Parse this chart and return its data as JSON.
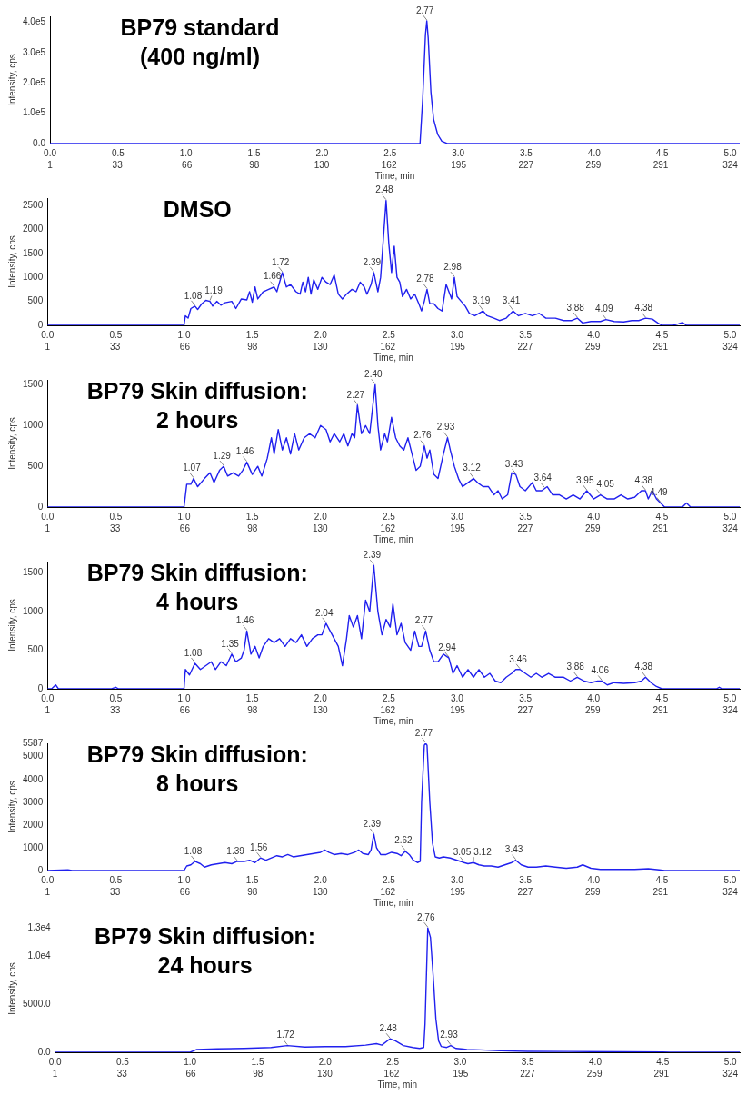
{
  "chart_data": [
    {
      "type": "line",
      "title": "BP79 standard (400 ng/ml)",
      "xlabel": "Time, min",
      "ylabel": "Intensity, cps",
      "marker": "none",
      "grid": false,
      "x": [
        0,
        1,
        2,
        2.72,
        2.74,
        2.76,
        2.77,
        2.78,
        2.8,
        2.82,
        2.85,
        2.88,
        2.92,
        3.5,
        4.5,
        5.07
      ],
      "series": [
        {
          "color": "#2020ee",
          "values": [
            0,
            0,
            0,
            0,
            150000,
            360000,
            405000,
            350000,
            170000,
            80000,
            30000,
            8000,
            0,
            0,
            0,
            0
          ]
        }
      ],
      "xlim": [
        0,
        5.07
      ],
      "xticks": [
        {
          "value": 0,
          "label": "0.0"
        },
        0.5,
        {
          "value": 1,
          "label": "1.0"
        },
        1.5,
        {
          "value": 2,
          "label": "2.0"
        },
        2.5,
        {
          "value": 3,
          "label": "3.0"
        },
        3.5,
        {
          "value": 4,
          "label": "4.0"
        },
        4.5,
        {
          "value": 5,
          "label": "5.0"
        }
      ],
      "x2lim": [
        1,
        328.5
      ],
      "x2ticks": [
        1,
        33,
        66,
        98,
        130,
        162,
        195,
        227,
        259,
        291,
        324
      ],
      "ylim": [
        0,
        420000
      ],
      "yticks": [
        {
          "value": 0,
          "label": "0.0"
        },
        {
          "value": 100000,
          "label": "1.0e5"
        },
        {
          "value": 200000,
          "label": "2.0e5"
        },
        {
          "value": 300000,
          "label": "3.0e5"
        },
        {
          "value": 400000,
          "label": "4.0e5"
        }
      ],
      "annotations": [
        {
          "text": "2.77",
          "x": 2.77,
          "y": 405000
        }
      ]
    },
    {
      "type": "line",
      "title": "DMSO",
      "xlabel": "Time, min",
      "ylabel": "Intensity, cps",
      "marker": "none",
      "grid": false,
      "x": [
        0,
        0.99,
        1.0,
        1.01,
        1.03,
        1.05,
        1.08,
        1.1,
        1.13,
        1.16,
        1.19,
        1.21,
        1.24,
        1.27,
        1.3,
        1.35,
        1.38,
        1.42,
        1.46,
        1.48,
        1.5,
        1.52,
        1.54,
        1.58,
        1.62,
        1.66,
        1.68,
        1.72,
        1.75,
        1.78,
        1.82,
        1.85,
        1.87,
        1.89,
        1.91,
        1.93,
        1.95,
        1.98,
        2.01,
        2.04,
        2.07,
        2.1,
        2.13,
        2.16,
        2.19,
        2.23,
        2.26,
        2.29,
        2.32,
        2.34,
        2.37,
        2.39,
        2.42,
        2.44,
        2.46,
        2.48,
        2.5,
        2.52,
        2.54,
        2.56,
        2.58,
        2.6,
        2.63,
        2.66,
        2.69,
        2.72,
        2.74,
        2.76,
        2.78,
        2.8,
        2.83,
        2.86,
        2.89,
        2.92,
        2.94,
        2.96,
        2.98,
        3.0,
        3.03,
        3.06,
        3.09,
        3.13,
        3.16,
        3.19,
        3.22,
        3.27,
        3.31,
        3.36,
        3.41,
        3.45,
        3.5,
        3.55,
        3.6,
        3.65,
        3.72,
        3.78,
        3.84,
        3.88,
        3.92,
        3.98,
        4.05,
        4.09,
        4.15,
        4.22,
        4.28,
        4.33,
        4.38,
        4.43,
        4.47,
        4.5,
        4.58,
        4.62,
        4.65,
        4.68,
        5.07
      ],
      "series": [
        {
          "color": "#2020ee",
          "values": [
            0,
            0,
            0,
            200,
            150,
            350,
            400,
            330,
            450,
            520,
            500,
            400,
            500,
            420,
            470,
            500,
            350,
            550,
            530,
            700,
            480,
            800,
            550,
            700,
            750,
            800,
            700,
            1100,
            800,
            850,
            700,
            650,
            900,
            700,
            1000,
            650,
            950,
            750,
            1000,
            900,
            850,
            1050,
            650,
            550,
            650,
            750,
            700,
            900,
            800,
            650,
            850,
            1100,
            700,
            1000,
            1800,
            2600,
            1700,
            1100,
            1650,
            1000,
            900,
            600,
            750,
            550,
            650,
            450,
            300,
            500,
            750,
            450,
            450,
            350,
            300,
            850,
            700,
            550,
            1000,
            600,
            500,
            400,
            250,
            200,
            250,
            300,
            200,
            150,
            100,
            150,
            300,
            200,
            250,
            200,
            250,
            150,
            150,
            100,
            100,
            150,
            50,
            80,
            80,
            120,
            80,
            70,
            100,
            100,
            150,
            130,
            50,
            0,
            0,
            30,
            60,
            0,
            0
          ]
        }
      ],
      "xlim": [
        0,
        5.07
      ],
      "xticks": [
        {
          "value": 0,
          "label": "0.0"
        },
        0.5,
        {
          "value": 1,
          "label": "1.0"
        },
        1.5,
        {
          "value": 2,
          "label": "2.0"
        },
        2.5,
        {
          "value": 3,
          "label": "3.0"
        },
        3.5,
        {
          "value": 4,
          "label": "4.0"
        },
        4.5,
        {
          "value": 5,
          "label": "5.0"
        }
      ],
      "x2lim": [
        1,
        328.5
      ],
      "x2ticks": [
        1,
        33,
        66,
        98,
        130,
        162,
        195,
        227,
        259,
        291,
        324
      ],
      "ylim": [
        0,
        2650
      ],
      "yticks": [
        0,
        500,
        1000,
        1500,
        2000,
        2500
      ],
      "annotations": [
        {
          "text": "1.08",
          "x": 1.08,
          "y": 400
        },
        {
          "text": "1.19",
          "x": 1.19,
          "y": 500
        },
        {
          "text": "1.66",
          "x": 1.66,
          "y": 800
        },
        {
          "text": "1.72",
          "x": 1.72,
          "y": 1100
        },
        {
          "text": "2.39",
          "x": 2.39,
          "y": 1100
        },
        {
          "text": "2.48",
          "x": 2.48,
          "y": 2600
        },
        {
          "text": "2.78",
          "x": 2.78,
          "y": 750
        },
        {
          "text": "2.98",
          "x": 2.98,
          "y": 1000
        },
        {
          "text": "3.19",
          "x": 3.19,
          "y": 300
        },
        {
          "text": "3.41",
          "x": 3.41,
          "y": 300
        },
        {
          "text": "3.88",
          "x": 3.88,
          "y": 150
        },
        {
          "text": "4.09",
          "x": 4.09,
          "y": 120
        },
        {
          "text": "4.38",
          "x": 4.38,
          "y": 150
        }
      ]
    },
    {
      "type": "line",
      "title": "BP79 Skin diffusion: 2 hours",
      "xlabel": "Time, min",
      "ylabel": "Intensity, cps",
      "marker": "none",
      "grid": false,
      "x": [
        0,
        0.99,
        1.0,
        1.02,
        1.05,
        1.07,
        1.1,
        1.15,
        1.19,
        1.22,
        1.26,
        1.29,
        1.32,
        1.36,
        1.4,
        1.43,
        1.46,
        1.5,
        1.54,
        1.57,
        1.61,
        1.64,
        1.66,
        1.69,
        1.72,
        1.75,
        1.78,
        1.81,
        1.84,
        1.88,
        1.92,
        1.96,
        2.0,
        2.04,
        2.07,
        2.1,
        2.14,
        2.17,
        2.2,
        2.23,
        2.25,
        2.27,
        2.3,
        2.33,
        2.36,
        2.38,
        2.4,
        2.42,
        2.44,
        2.47,
        2.49,
        2.52,
        2.55,
        2.58,
        2.61,
        2.64,
        2.67,
        2.7,
        2.73,
        2.76,
        2.78,
        2.8,
        2.83,
        2.86,
        2.9,
        2.93,
        2.95,
        2.98,
        3.01,
        3.04,
        3.08,
        3.12,
        3.15,
        3.19,
        3.23,
        3.27,
        3.3,
        3.33,
        3.37,
        3.4,
        3.43,
        3.46,
        3.5,
        3.55,
        3.58,
        3.62,
        3.66,
        3.7,
        3.75,
        3.8,
        3.85,
        3.9,
        3.95,
        4.0,
        4.05,
        4.1,
        4.15,
        4.2,
        4.25,
        4.3,
        4.35,
        4.38,
        4.4,
        4.43,
        4.46,
        4.49,
        4.52,
        4.65,
        4.68,
        4.71,
        5.07
      ],
      "series": [
        {
          "color": "#2020ee",
          "values": [
            0,
            0,
            0,
            280,
            280,
            350,
            250,
            350,
            420,
            300,
            450,
            500,
            380,
            420,
            380,
            450,
            550,
            400,
            500,
            380,
            600,
            850,
            650,
            950,
            700,
            850,
            650,
            900,
            700,
            850,
            900,
            850,
            1000,
            950,
            800,
            900,
            800,
            900,
            750,
            900,
            850,
            1250,
            900,
            1000,
            900,
            1200,
            1500,
            1000,
            700,
            900,
            800,
            1100,
            850,
            750,
            700,
            850,
            650,
            450,
            500,
            750,
            600,
            700,
            400,
            350,
            650,
            850,
            700,
            500,
            350,
            250,
            300,
            350,
            300,
            250,
            250,
            150,
            200,
            100,
            150,
            420,
            400,
            250,
            200,
            300,
            200,
            200,
            250,
            150,
            150,
            100,
            150,
            100,
            200,
            100,
            150,
            100,
            100,
            150,
            100,
            120,
            200,
            200,
            100,
            200,
            100,
            50,
            0,
            0,
            50,
            0,
            0
          ]
        }
      ],
      "xlim": [
        0,
        5.07
      ],
      "xticks": [
        {
          "value": 0,
          "label": "0.0"
        },
        0.5,
        {
          "value": 1,
          "label": "1.0"
        },
        1.5,
        {
          "value": 2,
          "label": "2.0"
        },
        2.5,
        {
          "value": 3,
          "label": "3.0"
        },
        3.5,
        {
          "value": 4,
          "label": "4.0"
        },
        4.5,
        {
          "value": 5,
          "label": "5.0"
        }
      ],
      "x2lim": [
        1,
        328.5
      ],
      "x2ticks": [
        1,
        33,
        66,
        98,
        130,
        162,
        195,
        227,
        259,
        291,
        324
      ],
      "ylim": [
        0,
        1560
      ],
      "yticks": [
        0,
        500,
        1000,
        1500
      ],
      "annotations": [
        {
          "text": "1.07",
          "x": 1.07,
          "y": 350
        },
        {
          "text": "1.29",
          "x": 1.29,
          "y": 500
        },
        {
          "text": "1.46",
          "x": 1.46,
          "y": 550
        },
        {
          "text": "2.27",
          "x": 2.27,
          "y": 1250
        },
        {
          "text": "2.40",
          "x": 2.4,
          "y": 1500
        },
        {
          "text": "2.76",
          "x": 2.76,
          "y": 750
        },
        {
          "text": "2.93",
          "x": 2.93,
          "y": 850
        },
        {
          "text": "3.12",
          "x": 3.12,
          "y": 350
        },
        {
          "text": "3.43",
          "x": 3.43,
          "y": 400
        },
        {
          "text": "3.64",
          "x": 3.64,
          "y": 230
        },
        {
          "text": "3.95",
          "x": 3.95,
          "y": 200
        },
        {
          "text": "4.05",
          "x": 4.05,
          "y": 150
        },
        {
          "text": "4.38",
          "x": 4.38,
          "y": 200
        },
        {
          "text": "4.49",
          "x": 4.49,
          "y": 50
        }
      ]
    },
    {
      "type": "line",
      "title": "BP79 Skin diffusion: 4 hours",
      "xlabel": "Time, min",
      "ylabel": "Intensity, cps",
      "marker": "none",
      "grid": false,
      "x": [
        0,
        0.03,
        0.06,
        0.08,
        0.47,
        0.5,
        0.52,
        0.99,
        1.0,
        1.01,
        1.04,
        1.08,
        1.12,
        1.16,
        1.2,
        1.23,
        1.27,
        1.31,
        1.35,
        1.38,
        1.42,
        1.44,
        1.46,
        1.49,
        1.52,
        1.55,
        1.58,
        1.62,
        1.66,
        1.7,
        1.74,
        1.78,
        1.82,
        1.86,
        1.9,
        1.94,
        1.98,
        2.01,
        2.04,
        2.07,
        2.1,
        2.13,
        2.16,
        2.19,
        2.21,
        2.24,
        2.27,
        2.3,
        2.33,
        2.36,
        2.39,
        2.42,
        2.45,
        2.48,
        2.51,
        2.53,
        2.56,
        2.59,
        2.62,
        2.66,
        2.69,
        2.72,
        2.74,
        2.77,
        2.8,
        2.83,
        2.86,
        2.9,
        2.94,
        2.97,
        3.0,
        3.04,
        3.08,
        3.12,
        3.16,
        3.2,
        3.24,
        3.28,
        3.32,
        3.36,
        3.4,
        3.43,
        3.46,
        3.5,
        3.54,
        3.58,
        3.62,
        3.67,
        3.72,
        3.78,
        3.83,
        3.88,
        3.93,
        3.98,
        4.03,
        4.06,
        4.1,
        4.15,
        4.22,
        4.3,
        4.35,
        4.38,
        4.42,
        4.46,
        4.5,
        4.9,
        4.92,
        4.94,
        5.07
      ],
      "series": [
        {
          "color": "#2020ee",
          "values": [
            0,
            0,
            50,
            0,
            0,
            20,
            0,
            0,
            0,
            250,
            180,
            330,
            250,
            300,
            350,
            250,
            350,
            300,
            450,
            350,
            400,
            500,
            750,
            450,
            550,
            400,
            550,
            650,
            600,
            650,
            550,
            650,
            600,
            700,
            550,
            650,
            700,
            700,
            850,
            750,
            650,
            550,
            300,
            650,
            950,
            800,
            950,
            650,
            1150,
            1000,
            1600,
            1000,
            700,
            900,
            800,
            1100,
            700,
            850,
            600,
            500,
            750,
            550,
            550,
            750,
            500,
            350,
            350,
            450,
            400,
            200,
            300,
            150,
            250,
            150,
            250,
            150,
            200,
            100,
            80,
            150,
            200,
            250,
            250,
            200,
            150,
            200,
            150,
            200,
            150,
            150,
            100,
            150,
            100,
            80,
            100,
            100,
            50,
            80,
            70,
            80,
            100,
            150,
            80,
            30,
            0,
            0,
            20,
            0,
            0
          ]
        }
      ],
      "xlim": [
        0,
        5.07
      ],
      "xticks": [
        {
          "value": 0,
          "label": "0.0"
        },
        0.5,
        {
          "value": 1,
          "label": "1.0"
        },
        1.5,
        {
          "value": 2,
          "label": "2.0"
        },
        2.5,
        {
          "value": 3,
          "label": "3.0"
        },
        3.5,
        {
          "value": 4,
          "label": "4.0"
        },
        4.5,
        {
          "value": 5,
          "label": "5.0"
        }
      ],
      "x2lim": [
        1,
        328.5
      ],
      "x2ticks": [
        1,
        33,
        66,
        98,
        130,
        162,
        195,
        227,
        259,
        291,
        324
      ],
      "ylim": [
        0,
        1650
      ],
      "yticks": [
        0,
        500,
        1000,
        1500
      ],
      "annotations": [
        {
          "text": "1.08",
          "x": 1.08,
          "y": 330
        },
        {
          "text": "1.35",
          "x": 1.35,
          "y": 450
        },
        {
          "text": "1.46",
          "x": 1.46,
          "y": 750
        },
        {
          "text": "2.04",
          "x": 2.04,
          "y": 850
        },
        {
          "text": "2.39",
          "x": 2.39,
          "y": 1600
        },
        {
          "text": "2.77",
          "x": 2.77,
          "y": 750
        },
        {
          "text": "2.94",
          "x": 2.94,
          "y": 400
        },
        {
          "text": "3.46",
          "x": 3.46,
          "y": 250
        },
        {
          "text": "3.88",
          "x": 3.88,
          "y": 150
        },
        {
          "text": "4.06",
          "x": 4.06,
          "y": 100
        },
        {
          "text": "4.38",
          "x": 4.38,
          "y": 150
        }
      ]
    },
    {
      "type": "line",
      "title": "BP79 Skin diffusion: 8 hours",
      "xlabel": "Time, min",
      "ylabel": "Intensity, cps",
      "marker": "none",
      "grid": false,
      "x": [
        0,
        0.15,
        0.18,
        0.99,
        1.0,
        1.02,
        1.05,
        1.08,
        1.12,
        1.15,
        1.2,
        1.25,
        1.3,
        1.35,
        1.39,
        1.44,
        1.48,
        1.52,
        1.56,
        1.6,
        1.64,
        1.68,
        1.72,
        1.76,
        1.8,
        1.85,
        1.9,
        1.95,
        2.0,
        2.03,
        2.06,
        2.1,
        2.15,
        2.2,
        2.25,
        2.28,
        2.31,
        2.35,
        2.37,
        2.39,
        2.41,
        2.44,
        2.48,
        2.52,
        2.56,
        2.59,
        2.62,
        2.65,
        2.68,
        2.71,
        2.73,
        2.74,
        2.76,
        2.77,
        2.78,
        2.8,
        2.82,
        2.84,
        2.87,
        2.9,
        2.95,
        3.0,
        3.05,
        3.08,
        3.12,
        3.16,
        3.2,
        3.25,
        3.3,
        3.35,
        3.4,
        3.43,
        3.47,
        3.52,
        3.58,
        3.65,
        3.72,
        3.8,
        3.88,
        3.92,
        3.98,
        4.05,
        4.15,
        4.3,
        4.4,
        4.48,
        4.52,
        5.07
      ],
      "series": [
        {
          "color": "#2020ee",
          "values": [
            0,
            30,
            0,
            0,
            0,
            200,
            250,
            400,
            300,
            150,
            250,
            300,
            350,
            300,
            400,
            400,
            450,
            350,
            550,
            450,
            550,
            650,
            600,
            700,
            600,
            650,
            700,
            750,
            800,
            900,
            800,
            700,
            750,
            700,
            800,
            900,
            750,
            700,
            900,
            1600,
            1000,
            700,
            700,
            800,
            750,
            650,
            850,
            700,
            450,
            350,
            400,
            3000,
            5500,
            5587,
            5500,
            3000,
            1200,
            600,
            550,
            600,
            550,
            450,
            350,
            300,
            350,
            250,
            200,
            200,
            150,
            250,
            350,
            450,
            250,
            150,
            150,
            200,
            150,
            100,
            150,
            250,
            100,
            50,
            50,
            50,
            80,
            30,
            0,
            0
          ]
        }
      ],
      "xlim": [
        0,
        5.07
      ],
      "xticks": [
        {
          "value": 0,
          "label": "0.0"
        },
        0.5,
        {
          "value": 1,
          "label": "1.0"
        },
        1.5,
        {
          "value": 2,
          "label": "2.0"
        },
        2.5,
        {
          "value": 3,
          "label": "3.0"
        },
        3.5,
        {
          "value": 4,
          "label": "4.0"
        },
        4.5,
        {
          "value": 5,
          "label": "5.0"
        }
      ],
      "x2lim": [
        1,
        328.5
      ],
      "x2ticks": [
        1,
        33,
        66,
        98,
        130,
        162,
        195,
        227,
        259,
        291,
        324
      ],
      "ylim": [
        0,
        5587
      ],
      "yticks": [
        0,
        1000,
        2000,
        3000,
        4000,
        5000,
        5587
      ],
      "annotations": [
        {
          "text": "1.08",
          "x": 1.08,
          "y": 400
        },
        {
          "text": "1.39",
          "x": 1.39,
          "y": 400
        },
        {
          "text": "1.56",
          "x": 1.56,
          "y": 550
        },
        {
          "text": "2.39",
          "x": 2.39,
          "y": 1600
        },
        {
          "text": "2.62",
          "x": 2.62,
          "y": 850
        },
        {
          "text": "2.77",
          "x": 2.77,
          "y": 5587
        },
        {
          "text": "3.05",
          "x": 3.05,
          "y": 350
        },
        {
          "text": "3.12",
          "x": 3.12,
          "y": 350
        },
        {
          "text": "3.43",
          "x": 3.43,
          "y": 450
        }
      ]
    },
    {
      "type": "line",
      "title": "BP79 Skin diffusion: 24 hours",
      "xlabel": "Time, min",
      "ylabel": "Intensity, cps",
      "marker": "none",
      "grid": false,
      "x": [
        0,
        0.99,
        1.0,
        1.05,
        1.2,
        1.4,
        1.6,
        1.72,
        1.85,
        2.0,
        2.15,
        2.3,
        2.38,
        2.42,
        2.48,
        2.52,
        2.58,
        2.65,
        2.7,
        2.73,
        2.74,
        2.76,
        2.78,
        2.8,
        2.82,
        2.84,
        2.86,
        2.9,
        2.93,
        2.97,
        3.05,
        3.15,
        3.3,
        3.5,
        3.8,
        4.2,
        4.5,
        4.55,
        5.07
      ],
      "series": [
        {
          "color": "#2020ee",
          "values": [
            0,
            0,
            0,
            300,
            350,
            400,
            500,
            700,
            550,
            600,
            600,
            750,
            900,
            750,
            1400,
            1200,
            700,
            500,
            400,
            500,
            3000,
            13000,
            12000,
            8000,
            3500,
            1200,
            600,
            500,
            700,
            400,
            300,
            250,
            150,
            100,
            80,
            50,
            30,
            0,
            0
          ]
        }
      ],
      "xlim": [
        0,
        5.07
      ],
      "xticks": [
        {
          "value": 0,
          "label": "0.0"
        },
        0.5,
        {
          "value": 1,
          "label": "1.0"
        },
        1.5,
        {
          "value": 2,
          "label": "2.0"
        },
        2.5,
        {
          "value": 3,
          "label": "3.0"
        },
        3.5,
        {
          "value": 4,
          "label": "4.0"
        },
        4.5,
        {
          "value": 5,
          "label": "5.0"
        }
      ],
      "x2lim": [
        1,
        328.5
      ],
      "x2ticks": [
        1,
        33,
        66,
        98,
        130,
        162,
        195,
        227,
        259,
        291,
        324
      ],
      "ylim": [
        0,
        13300
      ],
      "yticks": [
        {
          "value": 0,
          "label": "0.0"
        },
        {
          "value": 5000,
          "label": "5000.0"
        },
        {
          "value": 10000,
          "label": "1.0e4"
        },
        {
          "value": 13000,
          "label": "1.3e4"
        }
      ],
      "annotations": [
        {
          "text": "1.72",
          "x": 1.72,
          "y": 700
        },
        {
          "text": "2.48",
          "x": 2.48,
          "y": 1400
        },
        {
          "text": "2.76",
          "x": 2.76,
          "y": 13000
        },
        {
          "text": "2.93",
          "x": 2.93,
          "y": 700
        }
      ]
    }
  ]
}
